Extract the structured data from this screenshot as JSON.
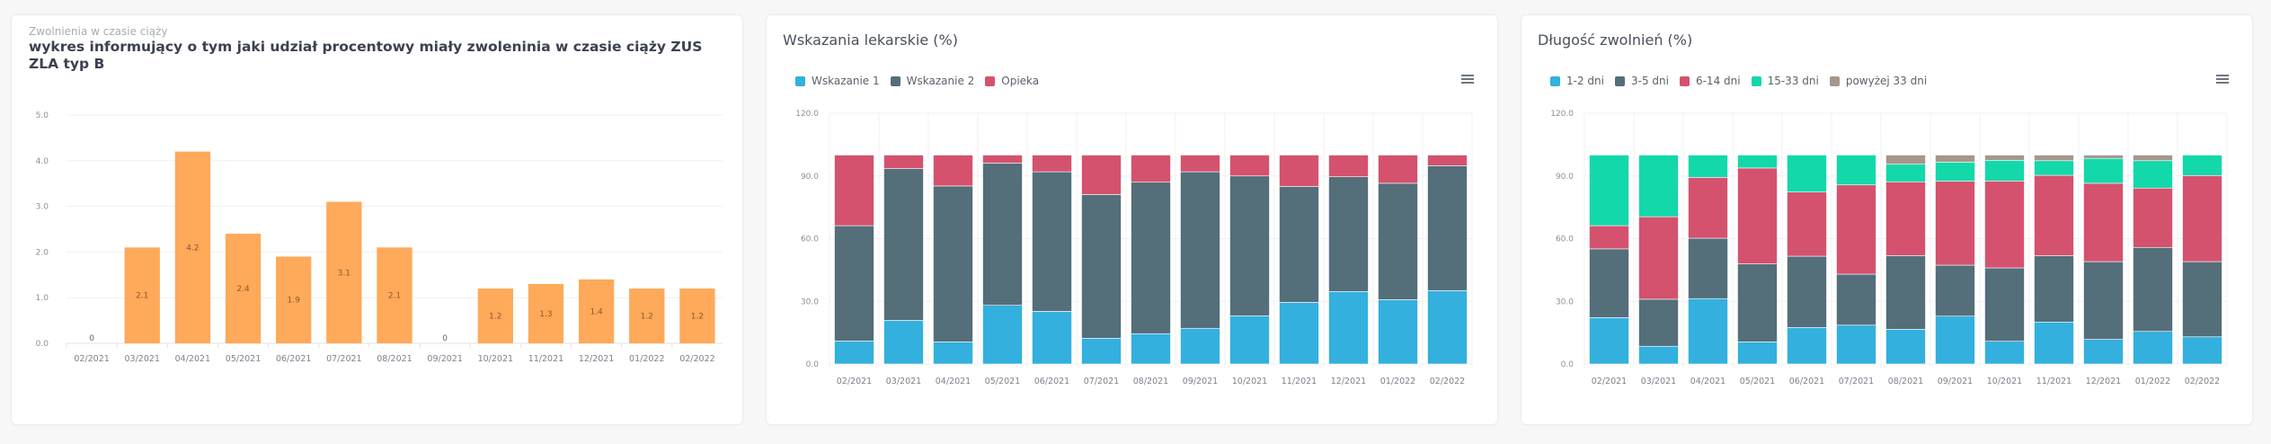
{
  "cards": [
    {
      "subtitle": "Zwolnienia w czasie ciąży",
      "title": "wykres informujący o tym jaki udział procentowy miały zwoleninia w czasie ciąży ZUS ZLA typ B"
    },
    {
      "title": "Wskazania lekarskie (%)",
      "menu_icon": "hamburger-menu-icon"
    },
    {
      "title": "Długość zwolnień (%)",
      "menu_icon": "hamburger-menu-icon"
    }
  ],
  "chart_data": [
    {
      "type": "bar",
      "title": "wykres informujący o tym jaki udział procentowy miały zwoleninia w czasie ciąży ZUS ZLA typ B",
      "categories": [
        "02/2021",
        "03/2021",
        "04/2021",
        "05/2021",
        "06/2021",
        "07/2021",
        "08/2021",
        "09/2021",
        "10/2021",
        "11/2021",
        "12/2021",
        "01/2022",
        "02/2022"
      ],
      "values": [
        0,
        2.1,
        4.2,
        2.4,
        1.9,
        3.1,
        2.1,
        0,
        1.2,
        1.3,
        1.4,
        1.2,
        1.2
      ],
      "data_labels": [
        "0",
        "2.1",
        "4.2",
        "2.4",
        "1.9",
        "3.1",
        "2.1",
        "0",
        "1.2",
        "1.3",
        "1.4",
        "1.2",
        "1.2"
      ],
      "yticks": [
        "0.0",
        "1.0",
        "2.0",
        "3.0",
        "4.0",
        "5.0"
      ],
      "ylim": [
        0,
        5
      ],
      "xlabel": "",
      "ylabel": "",
      "grid": true,
      "legend": "none",
      "color": "#ffa95a"
    },
    {
      "type": "bar",
      "stacked": true,
      "title": "Wskazania lekarskie (%)",
      "categories": [
        "02/2021",
        "03/2021",
        "04/2021",
        "05/2021",
        "06/2021",
        "07/2021",
        "08/2021",
        "09/2021",
        "10/2021",
        "11/2021",
        "12/2021",
        "01/2022",
        "02/2022"
      ],
      "series": [
        {
          "name": "Wskazanie 1",
          "color": "#33b0de",
          "values": [
            11.0,
            20.9,
            10.6,
            28.1,
            25.2,
            12.3,
            14.5,
            17.1,
            23.1,
            29.5,
            34.7,
            30.8,
            35.1
          ]
        },
        {
          "name": "Wskazanie 2",
          "color": "#546e7a",
          "values": [
            55.2,
            72.6,
            74.6,
            68.0,
            66.8,
            68.8,
            72.5,
            74.9,
            66.9,
            55.5,
            54.9,
            55.7,
            59.8
          ]
        },
        {
          "name": "Opieka",
          "color": "#d4526e",
          "values": [
            33.8,
            6.5,
            14.8,
            3.9,
            8.0,
            18.9,
            13.0,
            8.0,
            10.0,
            15.0,
            10.4,
            13.5,
            5.1
          ]
        }
      ],
      "yticks": [
        "0.0",
        "30.0",
        "60.0",
        "90.0",
        "120.0"
      ],
      "ylim": [
        0,
        120
      ],
      "xlabel": "",
      "ylabel": "",
      "grid": true,
      "legend": "top-left"
    },
    {
      "type": "bar",
      "stacked": true,
      "title": "Długość zwolnień (%)",
      "categories": [
        "02/2021",
        "03/2021",
        "04/2021",
        "05/2021",
        "06/2021",
        "07/2021",
        "08/2021",
        "09/2021",
        "10/2021",
        "11/2021",
        "12/2021",
        "01/2022",
        "02/2022"
      ],
      "series": [
        {
          "name": "1-2 dni",
          "color": "#33b0de",
          "values": [
            22.2,
            8.5,
            31.3,
            10.6,
            17.5,
            18.6,
            16.6,
            22.9,
            10.9,
            20.1,
            11.8,
            15.6,
            13.0
          ]
        },
        {
          "name": "3-5 dni",
          "color": "#546e7a",
          "values": [
            32.9,
            22.5,
            28.9,
            37.3,
            34.1,
            24.4,
            35.3,
            24.4,
            35.1,
            31.7,
            37.2,
            40.2,
            36.0
          ]
        },
        {
          "name": "6-14 dni",
          "color": "#d4526e",
          "values": [
            11.1,
            39.5,
            29.1,
            45.9,
            30.7,
            42.7,
            35.3,
            40.2,
            41.6,
            38.5,
            37.5,
            28.4,
            41.2
          ]
        },
        {
          "name": "15-33 dni",
          "color": "#13d8aa",
          "values": [
            33.8,
            29.5,
            10.7,
            6.2,
            17.7,
            14.3,
            8.4,
            9.1,
            9.9,
            7.0,
            11.9,
            13.1,
            9.8
          ]
        },
        {
          "name": "powyżej 33 dni",
          "color": "#a5978b",
          "values": [
            0,
            0,
            0,
            0,
            0,
            0,
            4.4,
            3.4,
            2.5,
            2.7,
            1.6,
            2.7,
            0
          ]
        }
      ],
      "yticks": [
        "0.0",
        "30.0",
        "60.0",
        "90.0",
        "120.0"
      ],
      "ylim": [
        0,
        120
      ],
      "xlabel": "",
      "ylabel": "",
      "grid": true,
      "legend": "top-left"
    }
  ]
}
